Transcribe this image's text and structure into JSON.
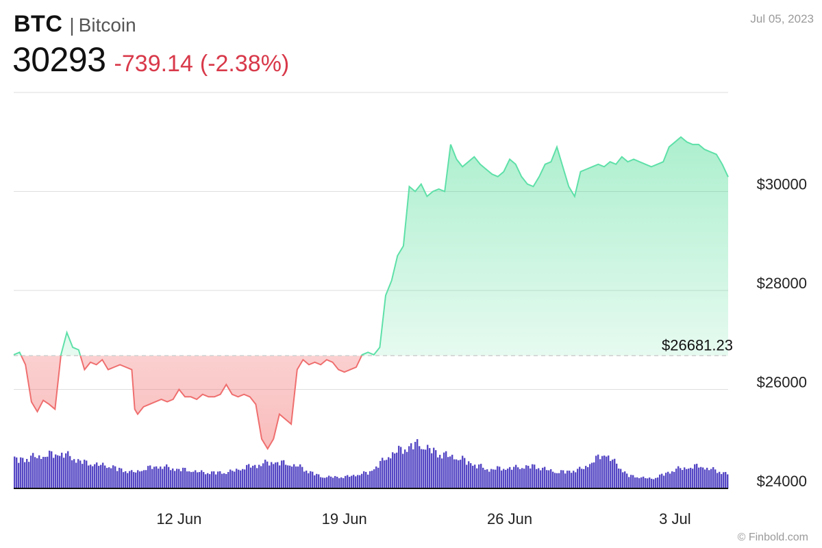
{
  "header": {
    "ticker": "BTC",
    "separator": "|",
    "name": "Bitcoin",
    "price": "30293",
    "change": "-739.14",
    "change_pct": "(-2.38%)",
    "date": "Jul 05, 2023"
  },
  "footer": {
    "credit": "© Finbold.com"
  },
  "colors": {
    "up_line": "#5ee0a8",
    "up_fill": "#3ad98a",
    "down_line": "#ef6e6e",
    "down_fill": "#f26a6a",
    "volume": "#5547c4",
    "change_text": "#d8394a",
    "grid": "#dedede"
  },
  "chart_data": {
    "type": "area",
    "title": "",
    "xlabel": "",
    "ylabel": "",
    "x_range": [
      "2023-06-05",
      "2023-07-05"
    ],
    "ylim": [
      24000,
      32000
    ],
    "y_ticks": [
      24000,
      26000,
      28000,
      30000
    ],
    "y_tick_labels": [
      "$24000",
      "$26000",
      "$28000",
      "$30000"
    ],
    "x_ticks": [
      "2023-06-12",
      "2023-06-19",
      "2023-06-26",
      "2023-07-03"
    ],
    "x_tick_labels": [
      "12 Jun",
      "19 Jun",
      "26 Jun",
      "3 Jul"
    ],
    "grid": true,
    "reference_line": {
      "value": 26681.23,
      "label": "$26681.23",
      "style": "dashed"
    },
    "series": [
      {
        "kind": "price",
        "points": [
          [
            "2023-06-05T00:00",
            26700
          ],
          [
            "2023-06-05T06:00",
            26750
          ],
          [
            "2023-06-05T12:00",
            26500
          ],
          [
            "2023-06-05T18:00",
            25750
          ],
          [
            "2023-06-06T00:00",
            25550
          ],
          [
            "2023-06-06T06:00",
            25780
          ],
          [
            "2023-06-06T12:00",
            25700
          ],
          [
            "2023-06-06T18:00",
            25600
          ],
          [
            "2023-06-07T00:00",
            26700
          ],
          [
            "2023-06-07T06:00",
            27150
          ],
          [
            "2023-06-07T12:00",
            26850
          ],
          [
            "2023-06-07T18:00",
            26800
          ],
          [
            "2023-06-08T00:00",
            26400
          ],
          [
            "2023-06-08T06:00",
            26550
          ],
          [
            "2023-06-08T12:00",
            26500
          ],
          [
            "2023-06-08T18:00",
            26600
          ],
          [
            "2023-06-09T00:00",
            26400
          ],
          [
            "2023-06-09T06:00",
            26450
          ],
          [
            "2023-06-09T12:00",
            26500
          ],
          [
            "2023-06-09T18:00",
            26450
          ],
          [
            "2023-06-10T00:00",
            26400
          ],
          [
            "2023-06-10T03:00",
            25600
          ],
          [
            "2023-06-10T06:00",
            25500
          ],
          [
            "2023-06-10T12:00",
            25650
          ],
          [
            "2023-06-10T18:00",
            25700
          ],
          [
            "2023-06-11T00:00",
            25750
          ],
          [
            "2023-06-11T06:00",
            25800
          ],
          [
            "2023-06-11T12:00",
            25750
          ],
          [
            "2023-06-11T18:00",
            25800
          ],
          [
            "2023-06-12T00:00",
            26000
          ],
          [
            "2023-06-12T06:00",
            25850
          ],
          [
            "2023-06-12T12:00",
            25850
          ],
          [
            "2023-06-12T18:00",
            25800
          ],
          [
            "2023-06-13T00:00",
            25900
          ],
          [
            "2023-06-13T06:00",
            25850
          ],
          [
            "2023-06-13T12:00",
            25850
          ],
          [
            "2023-06-13T18:00",
            25900
          ],
          [
            "2023-06-14T00:00",
            26100
          ],
          [
            "2023-06-14T06:00",
            25900
          ],
          [
            "2023-06-14T12:00",
            25850
          ],
          [
            "2023-06-14T18:00",
            25900
          ],
          [
            "2023-06-15T00:00",
            25850
          ],
          [
            "2023-06-15T06:00",
            25700
          ],
          [
            "2023-06-15T12:00",
            25000
          ],
          [
            "2023-06-15T18:00",
            24800
          ],
          [
            "2023-06-16T00:00",
            25000
          ],
          [
            "2023-06-16T06:00",
            25500
          ],
          [
            "2023-06-16T12:00",
            25400
          ],
          [
            "2023-06-16T18:00",
            25300
          ],
          [
            "2023-06-17T00:00",
            26400
          ],
          [
            "2023-06-17T06:00",
            26600
          ],
          [
            "2023-06-17T12:00",
            26500
          ],
          [
            "2023-06-17T18:00",
            26550
          ],
          [
            "2023-06-18T00:00",
            26500
          ],
          [
            "2023-06-18T06:00",
            26600
          ],
          [
            "2023-06-18T12:00",
            26550
          ],
          [
            "2023-06-18T18:00",
            26400
          ],
          [
            "2023-06-19T00:00",
            26350
          ],
          [
            "2023-06-19T06:00",
            26400
          ],
          [
            "2023-06-19T12:00",
            26450
          ],
          [
            "2023-06-19T18:00",
            26700
          ],
          [
            "2023-06-20T00:00",
            26750
          ],
          [
            "2023-06-20T06:00",
            26700
          ],
          [
            "2023-06-20T12:00",
            26850
          ],
          [
            "2023-06-20T18:00",
            27900
          ],
          [
            "2023-06-21T00:00",
            28200
          ],
          [
            "2023-06-21T06:00",
            28700
          ],
          [
            "2023-06-21T12:00",
            28900
          ],
          [
            "2023-06-21T18:00",
            30100
          ],
          [
            "2023-06-22T00:00",
            30000
          ],
          [
            "2023-06-22T06:00",
            30150
          ],
          [
            "2023-06-22T12:00",
            29900
          ],
          [
            "2023-06-22T18:00",
            30000
          ],
          [
            "2023-06-23T00:00",
            30050
          ],
          [
            "2023-06-23T06:00",
            30000
          ],
          [
            "2023-06-23T12:00",
            30950
          ],
          [
            "2023-06-23T18:00",
            30650
          ],
          [
            "2023-06-24T00:00",
            30500
          ],
          [
            "2023-06-24T06:00",
            30600
          ],
          [
            "2023-06-24T12:00",
            30700
          ],
          [
            "2023-06-24T18:00",
            30550
          ],
          [
            "2023-06-25T00:00",
            30450
          ],
          [
            "2023-06-25T06:00",
            30350
          ],
          [
            "2023-06-25T12:00",
            30300
          ],
          [
            "2023-06-25T18:00",
            30400
          ],
          [
            "2023-06-26T00:00",
            30650
          ],
          [
            "2023-06-26T06:00",
            30550
          ],
          [
            "2023-06-26T12:00",
            30300
          ],
          [
            "2023-06-26T18:00",
            30150
          ],
          [
            "2023-06-27T00:00",
            30100
          ],
          [
            "2023-06-27T06:00",
            30300
          ],
          [
            "2023-06-27T12:00",
            30550
          ],
          [
            "2023-06-27T18:00",
            30600
          ],
          [
            "2023-06-28T00:00",
            30900
          ],
          [
            "2023-06-28T06:00",
            30500
          ],
          [
            "2023-06-28T12:00",
            30100
          ],
          [
            "2023-06-28T18:00",
            29900
          ],
          [
            "2023-06-29T00:00",
            30400
          ],
          [
            "2023-06-29T06:00",
            30450
          ],
          [
            "2023-06-29T12:00",
            30500
          ],
          [
            "2023-06-29T18:00",
            30550
          ],
          [
            "2023-06-30T00:00",
            30500
          ],
          [
            "2023-06-30T06:00",
            30600
          ],
          [
            "2023-06-30T12:00",
            30550
          ],
          [
            "2023-06-30T18:00",
            30700
          ],
          [
            "2023-07-01T00:00",
            30600
          ],
          [
            "2023-07-01T06:00",
            30650
          ],
          [
            "2023-07-01T12:00",
            30600
          ],
          [
            "2023-07-01T18:00",
            30550
          ],
          [
            "2023-07-02T00:00",
            30500
          ],
          [
            "2023-07-02T06:00",
            30550
          ],
          [
            "2023-07-02T12:00",
            30600
          ],
          [
            "2023-07-02T18:00",
            30900
          ],
          [
            "2023-07-03T00:00",
            31000
          ],
          [
            "2023-07-03T06:00",
            31100
          ],
          [
            "2023-07-03T12:00",
            31000
          ],
          [
            "2023-07-03T18:00",
            30950
          ],
          [
            "2023-07-04T00:00",
            30950
          ],
          [
            "2023-07-04T06:00",
            30850
          ],
          [
            "2023-07-04T12:00",
            30800
          ],
          [
            "2023-07-04T18:00",
            30750
          ],
          [
            "2023-07-05T00:00",
            30550
          ],
          [
            "2023-07-05T06:00",
            30293
          ]
        ]
      },
      {
        "kind": "volume",
        "ylim": [
          0,
          100
        ],
        "points": [
          [
            "2023-06-05T00:00",
            45
          ],
          [
            "2023-06-06T00:00",
            50
          ],
          [
            "2023-06-07T00:00",
            55
          ],
          [
            "2023-06-08T00:00",
            40
          ],
          [
            "2023-06-09T00:00",
            35
          ],
          [
            "2023-06-10T00:00",
            25
          ],
          [
            "2023-06-11T00:00",
            35
          ],
          [
            "2023-06-12T00:00",
            30
          ],
          [
            "2023-06-13T00:00",
            25
          ],
          [
            "2023-06-14T00:00",
            25
          ],
          [
            "2023-06-15T00:00",
            35
          ],
          [
            "2023-06-16T00:00",
            42
          ],
          [
            "2023-06-17T00:00",
            35
          ],
          [
            "2023-06-18T00:00",
            18
          ],
          [
            "2023-06-19T00:00",
            18
          ],
          [
            "2023-06-20T00:00",
            25
          ],
          [
            "2023-06-21T00:00",
            55
          ],
          [
            "2023-06-22T00:00",
            70
          ],
          [
            "2023-06-23T00:00",
            55
          ],
          [
            "2023-06-24T00:00",
            45
          ],
          [
            "2023-06-25T00:00",
            30
          ],
          [
            "2023-06-26T00:00",
            32
          ],
          [
            "2023-06-27T00:00",
            35
          ],
          [
            "2023-06-28T00:00",
            25
          ],
          [
            "2023-06-29T00:00",
            30
          ],
          [
            "2023-06-30T00:00",
            55
          ],
          [
            "2023-07-01T00:00",
            20
          ],
          [
            "2023-07-02T00:00",
            15
          ],
          [
            "2023-07-03T00:00",
            30
          ],
          [
            "2023-07-04T00:00",
            35
          ],
          [
            "2023-07-05T00:00",
            25
          ]
        ]
      }
    ]
  }
}
